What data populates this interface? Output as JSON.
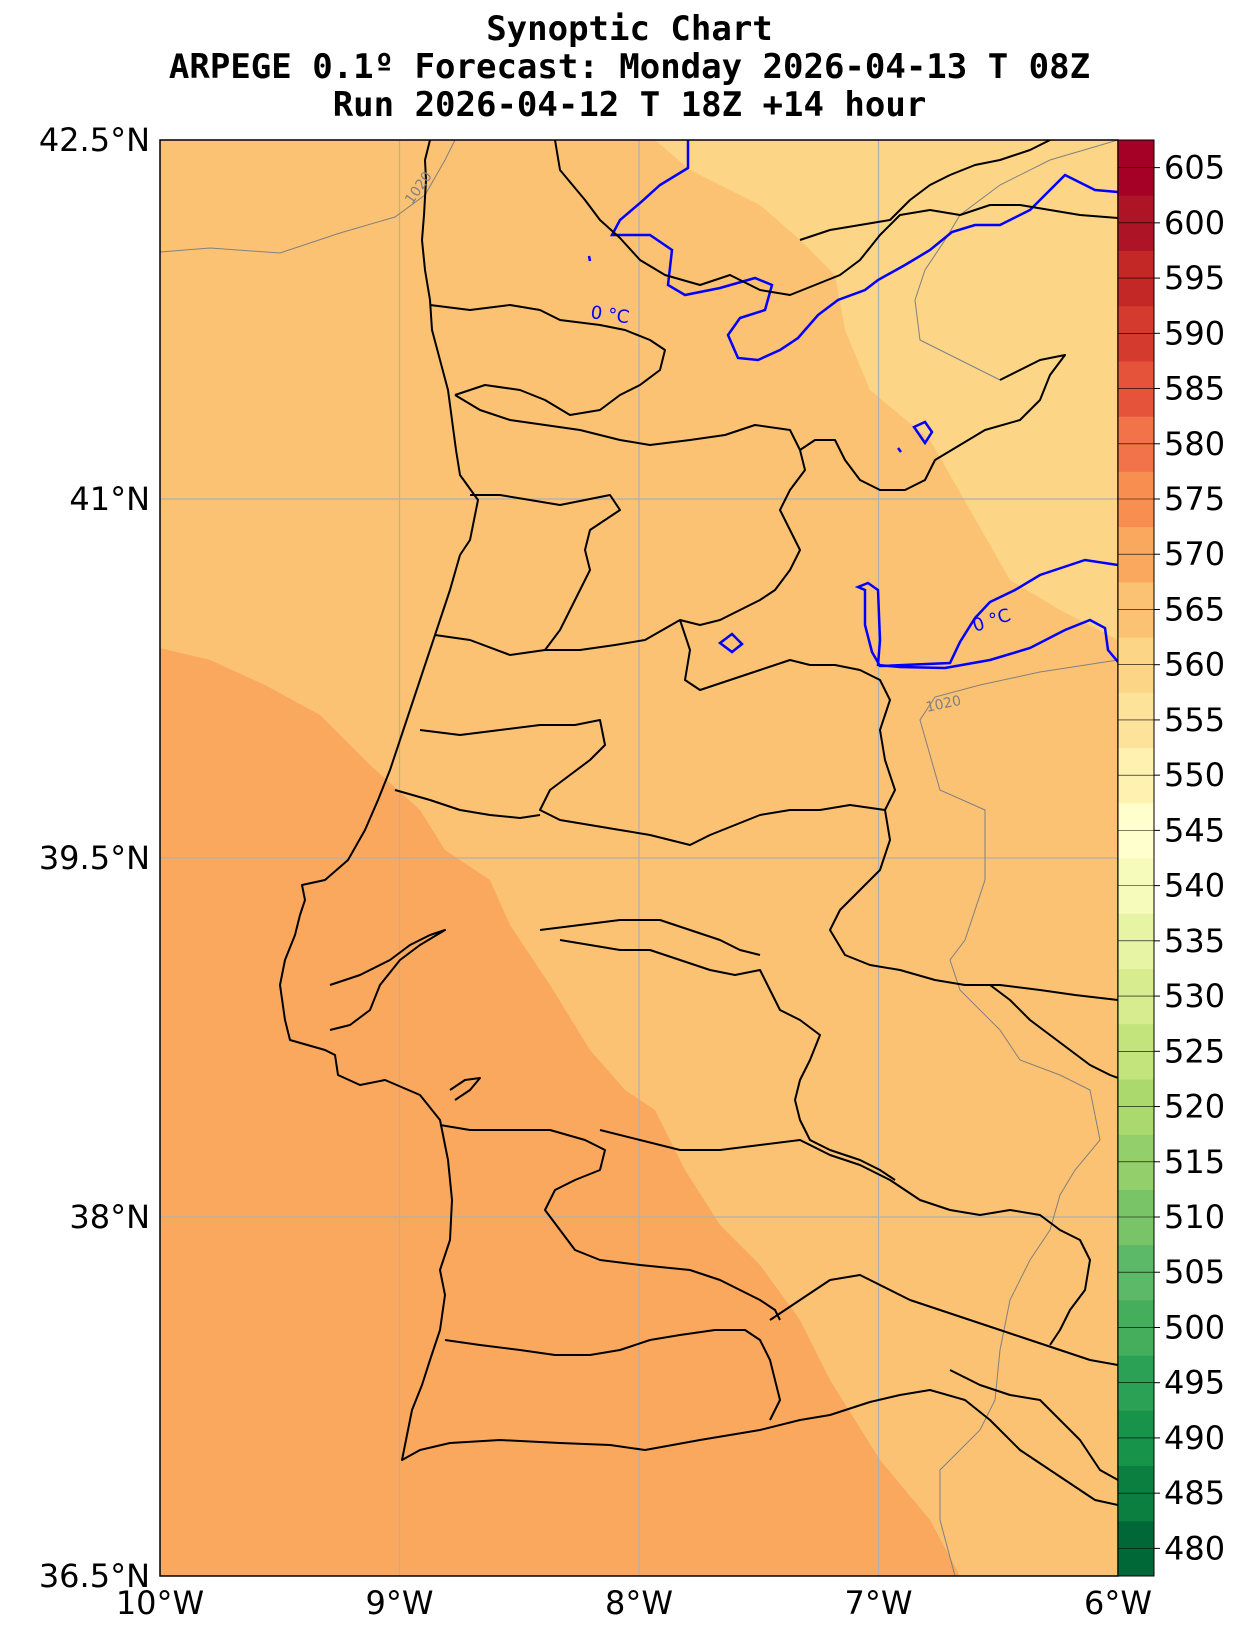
{
  "title": {
    "line1": "Synoptic Chart",
    "line2": "ARPEGE 0.1º Forecast: Monday 2026-04-13 T 08Z",
    "line3": "Run 2026-04-12 T 18Z +14 hour"
  },
  "map": {
    "lon_range": [
      -10,
      -6
    ],
    "lat_range": [
      36.5,
      42.5
    ],
    "lat_ticks": [
      {
        "value": 42.5,
        "label": "42.5°N"
      },
      {
        "value": 41,
        "label": "41°N"
      },
      {
        "value": 39.5,
        "label": "39.5°N"
      },
      {
        "value": 38,
        "label": "38°N"
      },
      {
        "value": 36.5,
        "label": "36.5°N"
      }
    ],
    "lon_ticks": [
      {
        "value": -10,
        "label": "10°W"
      },
      {
        "value": -9,
        "label": "9°W"
      },
      {
        "value": -8,
        "label": "8°W"
      },
      {
        "value": -7,
        "label": "7°W"
      },
      {
        "value": -6,
        "label": "6°W"
      }
    ],
    "contour_labels": {
      "isobar_1": "1020",
      "isobar_2": "1020",
      "freezing_1": "0 °C",
      "freezing_2": "0 °C"
    },
    "fill_colors": {
      "band_555_560": "#fcd586",
      "band_560_565": "#fbc274",
      "band_565_570": "#f9a85e"
    },
    "isotherm_color": "#0000ff",
    "isobar_color": "#808080",
    "grid_color": "#b0b0b0"
  },
  "colorbar": {
    "levels": [
      480,
      485,
      490,
      495,
      500,
      505,
      510,
      515,
      520,
      525,
      530,
      535,
      540,
      545,
      550,
      555,
      560,
      565,
      570,
      575,
      580,
      585,
      590,
      595,
      600,
      605
    ],
    "colors": [
      "#006837",
      "#0b7f3f",
      "#17934a",
      "#2ba155",
      "#44ae5d",
      "#5cb968",
      "#78c466",
      "#93cf6a",
      "#acd96e",
      "#c3e37d",
      "#d6ec8f",
      "#e7f4a4",
      "#f6fbbb",
      "#fffecc",
      "#fff2b0",
      "#fde29a",
      "#fcd586",
      "#fbc274",
      "#f9a85e",
      "#f88e50",
      "#f2724a",
      "#e4533a",
      "#d43a2e",
      "#c32827",
      "#ad1527",
      "#a50026"
    ]
  }
}
